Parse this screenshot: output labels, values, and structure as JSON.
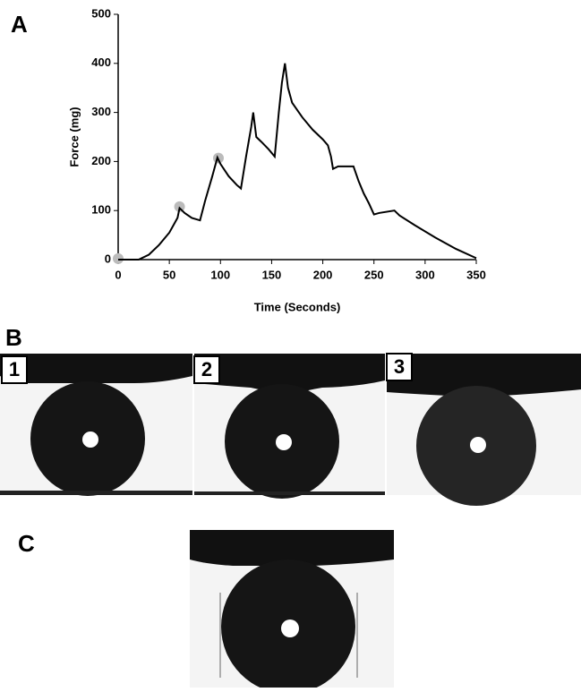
{
  "chart_data": {
    "type": "line",
    "xlabel": "Time (Seconds)",
    "ylabel": "Force (mg)",
    "xlim": [
      0,
      350
    ],
    "xticks": [
      0,
      50,
      100,
      150,
      200,
      250,
      300,
      350
    ],
    "ylim": [
      0,
      500
    ],
    "yticks": [
      0,
      100,
      200,
      300,
      400,
      500
    ],
    "series": [
      {
        "color": "#000000",
        "x": [
          0,
          20,
          30,
          40,
          50,
          58,
          60,
          65,
          72,
          80,
          85,
          92,
          97,
          100,
          108,
          116,
          120,
          125,
          130,
          132,
          135,
          140,
          147,
          153,
          157,
          160,
          163,
          166,
          170,
          180,
          190,
          200,
          205,
          208,
          210,
          215,
          230,
          235,
          240,
          245,
          250,
          255,
          270,
          275,
          290,
          310,
          330,
          350
        ],
        "values": [
          0,
          0,
          10,
          30,
          55,
          85,
          105,
          95,
          85,
          80,
          120,
          170,
          208,
          195,
          170,
          152,
          145,
          210,
          270,
          300,
          250,
          240,
          225,
          210,
          300,
          360,
          400,
          350,
          320,
          290,
          265,
          245,
          233,
          210,
          185,
          190,
          190,
          160,
          135,
          115,
          92,
          95,
          100,
          90,
          70,
          45,
          22,
          3
        ]
      }
    ],
    "markers": {
      "color": "#bbbbbb",
      "x": [
        0,
        60,
        98
      ],
      "y": [
        2,
        108,
        207
      ]
    }
  },
  "panel_labels": [
    "A",
    "B",
    "C"
  ],
  "frame_labels": [
    "1",
    "2",
    "3"
  ]
}
